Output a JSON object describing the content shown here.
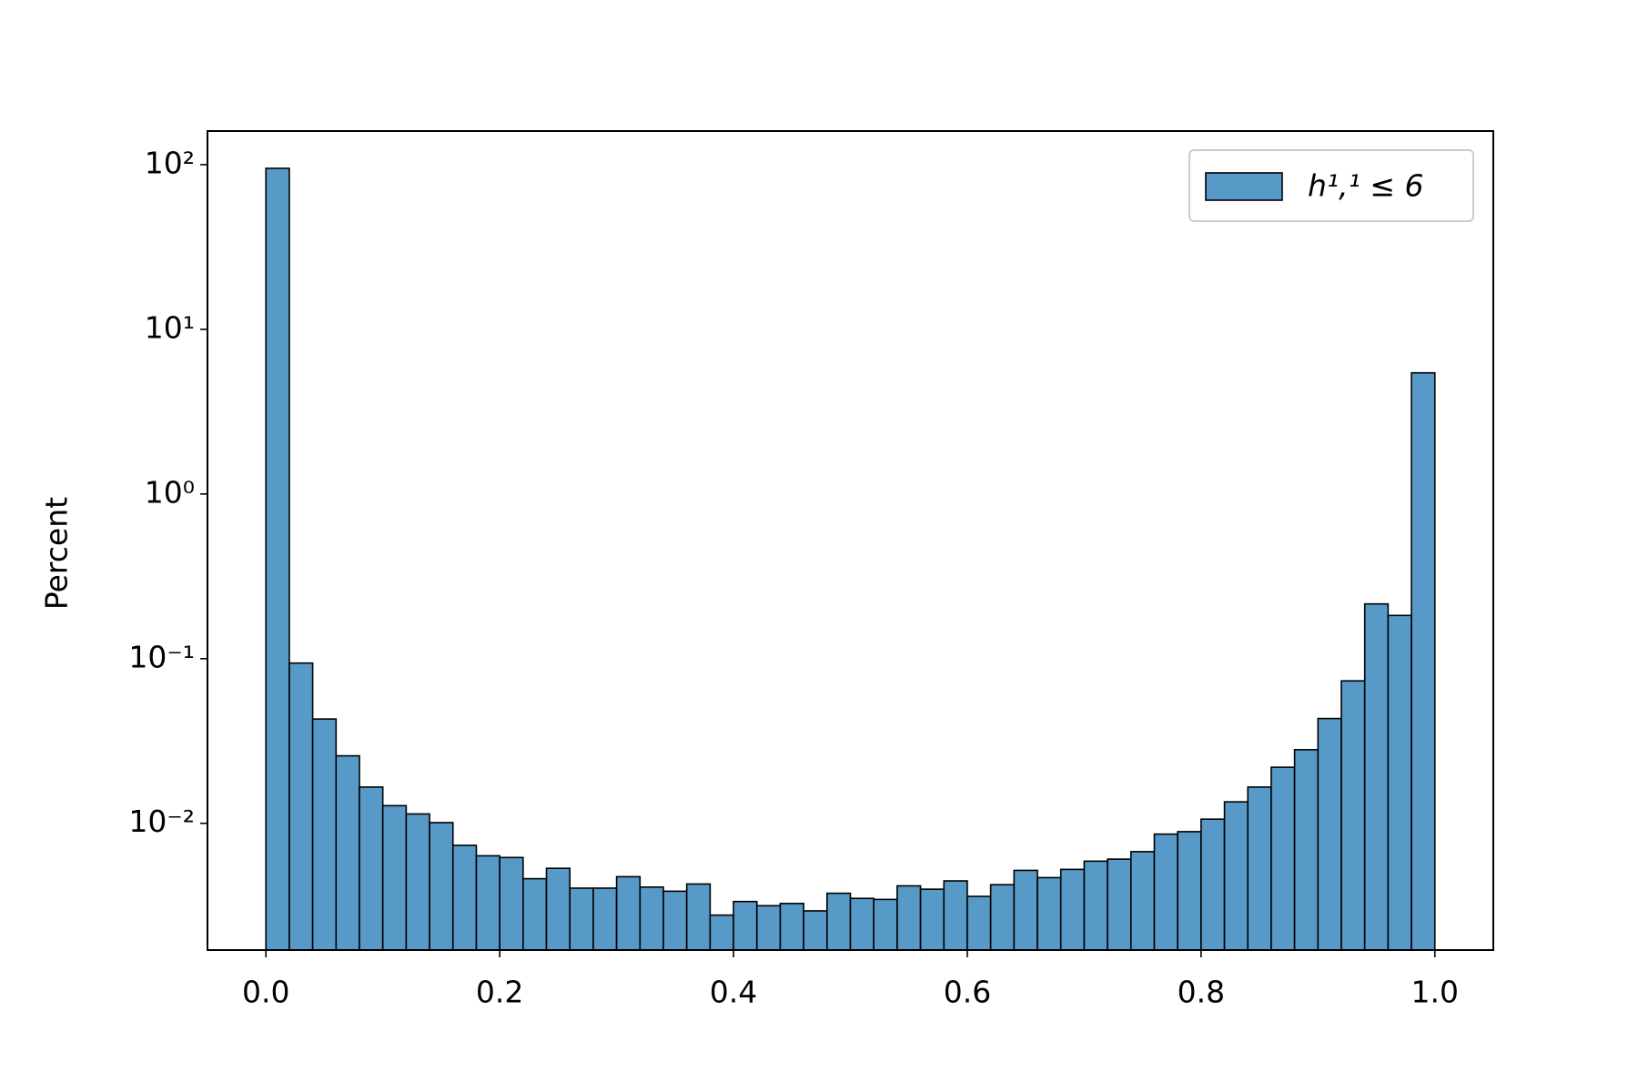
{
  "chart_data": {
    "type": "histogram",
    "y_label": "Percent",
    "legend_label": "h¹,¹ ≤ 6",
    "legend_position": "upper right",
    "color": "#5799c7",
    "edge_color": "#000000",
    "log_y": true,
    "bins": [
      0,
      0.02,
      0.04,
      0.06,
      0.08,
      0.1,
      0.12,
      0.14,
      0.16,
      0.18,
      0.2,
      0.22,
      0.24,
      0.26,
      0.28,
      0.3,
      0.32,
      0.34,
      0.36,
      0.38,
      0.4,
      0.42,
      0.44,
      0.46,
      0.48,
      0.5,
      0.52,
      0.54,
      0.56,
      0.58,
      0.6,
      0.62,
      0.64,
      0.66,
      0.68,
      0.7,
      0.72,
      0.74,
      0.76,
      0.78,
      0.8,
      0.82,
      0.84,
      0.86,
      0.88,
      0.9,
      0.92,
      0.94,
      0.96,
      0.98,
      1
    ],
    "counts": [
      95,
      0.094,
      0.043,
      0.0257,
      0.0166,
      0.0128,
      0.0114,
      0.0101,
      0.00735,
      0.00635,
      0.0062,
      0.00461,
      0.00533,
      0.00404,
      0.00404,
      0.00474,
      0.0041,
      0.00387,
      0.00428,
      0.00277,
      0.00335,
      0.00316,
      0.00326,
      0.00294,
      0.00376,
      0.0035,
      0.00345,
      0.00417,
      0.00398,
      0.00447,
      0.0036,
      0.00424,
      0.00518,
      0.00468,
      0.00525,
      0.00589,
      0.00606,
      0.00673,
      0.0086,
      0.0089,
      0.0106,
      0.0135,
      0.0166,
      0.0219,
      0.028,
      0.0433,
      0.0733,
      0.215,
      0.183,
      5.44
    ],
    "xlim": [
      -0.05,
      1.05
    ],
    "ylim": [
      0.0017,
      160
    ],
    "xticks": [
      {
        "value": 0,
        "label": "0.0"
      },
      0.2,
      0.4,
      0.6,
      0.8,
      {
        "value": 1,
        "label": "1.0"
      }
    ],
    "yticks": [
      {
        "value": 0.01,
        "label": "10⁻²"
      },
      {
        "value": 0.1,
        "label": "10⁻¹"
      },
      {
        "value": 1,
        "label": "10⁰"
      },
      {
        "value": 10,
        "label": "10¹"
      },
      {
        "value": 100,
        "label": "10²"
      }
    ]
  }
}
